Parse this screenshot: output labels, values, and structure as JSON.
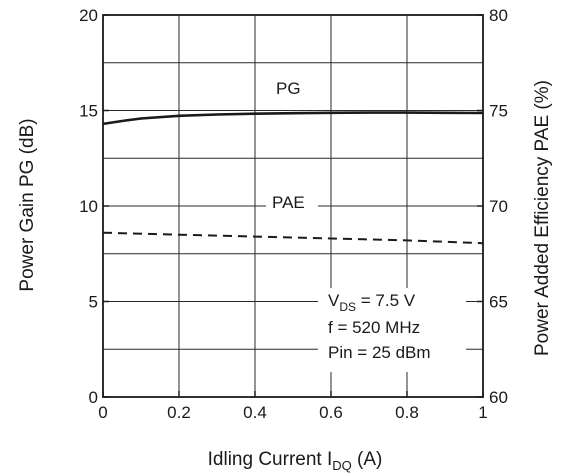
{
  "chart_data": {
    "type": "line",
    "xlabel_main": "Idling Current I",
    "xlabel_sub": "DQ",
    "xlabel_tail": " (A)",
    "ylabel_left": "Power Gain PG (dB)",
    "ylabel_right": "Power Added Efficiency PAE (%)",
    "xlim": [
      0,
      1
    ],
    "ylim_left": [
      0,
      20
    ],
    "ylim_right": [
      60,
      80
    ],
    "x_ticks": [
      "0",
      "0.2",
      "0.4",
      "0.6",
      "0.8",
      "1"
    ],
    "y_left_ticks": [
      "0",
      "5",
      "10",
      "15",
      "20"
    ],
    "y_right_ticks": [
      "60",
      "65",
      "70",
      "75",
      "80"
    ],
    "grid": true,
    "series": [
      {
        "name": "PG",
        "axis": "left",
        "line_style": "solid",
        "color": "#1a1a1a",
        "x": [
          0,
          0.05,
          0.1,
          0.2,
          0.3,
          0.4,
          0.5,
          0.6,
          0.7,
          0.8,
          0.9,
          1.0
        ],
        "y": [
          14.3,
          14.45,
          14.58,
          14.72,
          14.79,
          14.83,
          14.86,
          14.88,
          14.89,
          14.89,
          14.88,
          14.87
        ]
      },
      {
        "name": "PAE",
        "axis": "right",
        "line_style": "dashed",
        "color": "#1a1a1a",
        "x": [
          0,
          0.2,
          0.4,
          0.6,
          0.8,
          1.0
        ],
        "y": [
          68.6,
          68.5,
          68.4,
          68.3,
          68.2,
          68.05
        ]
      }
    ],
    "conditions": {
      "vds_main": "V",
      "vds_sub": "DS",
      "vds_tail": " = 7.5 V",
      "freq": "f = 520 MHz",
      "pin": "Pin = 25 dBm"
    }
  }
}
